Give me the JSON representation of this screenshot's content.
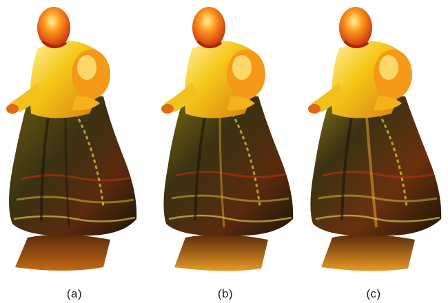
{
  "figure": {
    "panels": [
      {
        "caption": "(a)"
      },
      {
        "caption": "(b)"
      },
      {
        "caption": "(c)"
      }
    ],
    "palette": {
      "background": "#ffffff",
      "highlight": "#fff2a0",
      "yellow": "#f7d21e",
      "orange": "#ff8a14",
      "red": "#e8380c",
      "dark": "#231a08",
      "olive": "#5e6a18",
      "pattern": "#c8b838"
    }
  }
}
